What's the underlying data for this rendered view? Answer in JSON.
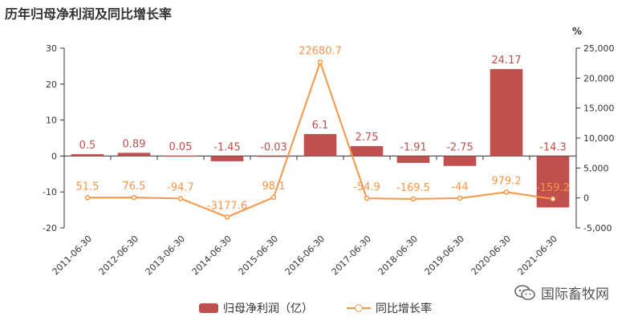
{
  "title": "历年归母净利润及同比增长率",
  "watermark": "国际畜牧网",
  "colors": {
    "bar": "#c0504d",
    "line": "#f79646",
    "grid": "#e6e6e6",
    "axis": "#333333"
  },
  "chart_data": {
    "type": "bar+line",
    "categories": [
      "2011-06-30",
      "2012-06-30",
      "2013-06-30",
      "2014-06-30",
      "2015-06-30",
      "2016-06-30",
      "2017-06-30",
      "2018-06-30",
      "2019-06-30",
      "2020-06-30",
      "2021-06-30"
    ],
    "series": [
      {
        "name": "归母净利润（亿）",
        "type": "bar",
        "axis": "left",
        "values": [
          0.5,
          0.89,
          0.05,
          -1.45,
          -0.03,
          6.1,
          2.75,
          -1.91,
          -2.75,
          24.17,
          -14.3
        ],
        "labels": [
          "0.5",
          "0.89",
          "0.05",
          "-1.45",
          "-0.03",
          "6.1",
          "2.75",
          "-1.91",
          "-2.75",
          "24.17",
          "-14.3"
        ]
      },
      {
        "name": "同比增长率",
        "type": "line",
        "axis": "right",
        "values": [
          51.5,
          76.5,
          -94.7,
          -3177.6,
          98.1,
          22680.7,
          -54.9,
          -169.5,
          -44,
          979.2,
          -159.2
        ],
        "labels": [
          "51.5",
          "76.5",
          "-94.7",
          "-3177.6",
          "98.1",
          "22680.7",
          "-54.9",
          "-169.5",
          "-44",
          "979.2",
          "-159.2"
        ]
      }
    ],
    "y_left": {
      "min": -20,
      "max": 30,
      "ticks": [
        "30",
        "20",
        "10",
        "0",
        "-10",
        "-20"
      ],
      "tick_values": [
        30,
        20,
        10,
        0,
        -10,
        -20
      ]
    },
    "y_right": {
      "min": -5000,
      "max": 25000,
      "unit": "%",
      "ticks": [
        "25,000",
        "20,000",
        "15,000",
        "10,000",
        "5,000",
        "0",
        "-5,000"
      ],
      "tick_values": [
        25000,
        20000,
        15000,
        10000,
        5000,
        0,
        -5000
      ]
    },
    "grid": false,
    "legend_position": "bottom"
  }
}
